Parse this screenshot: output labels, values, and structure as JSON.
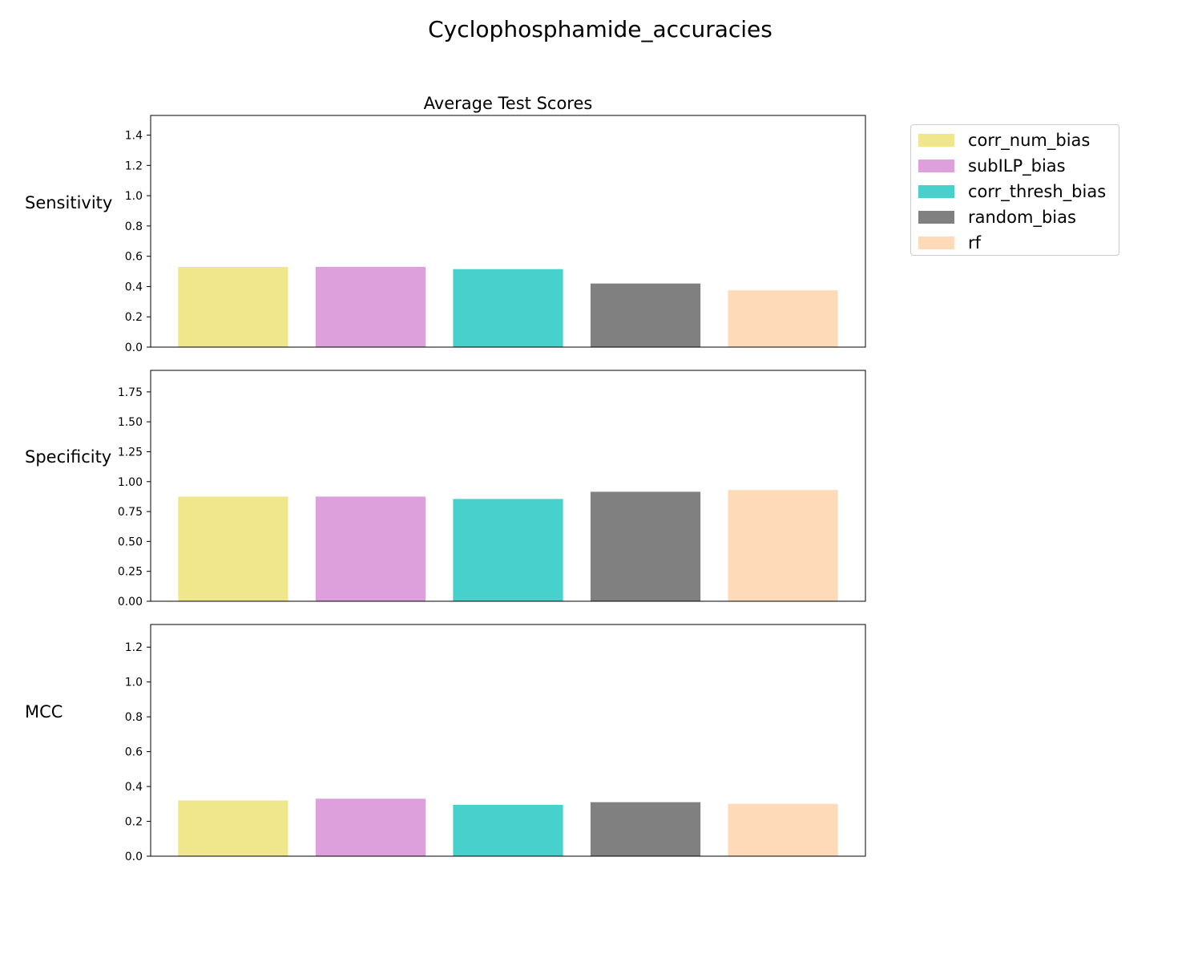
{
  "chart_data": {
    "type": "bar",
    "title": "Cyclophosphamide_accuracies",
    "subtitle": "Average Test Scores",
    "categories": [
      "corr_num_bias",
      "subILP_bias",
      "corr_thresh_bias",
      "random_bias",
      "rf"
    ],
    "colors": [
      "#f0e68c",
      "#dda0dd",
      "#48d1cc",
      "#808080",
      "#ffdab9"
    ],
    "legend": {
      "position": "right",
      "entries": [
        "corr_num_bias",
        "subILP_bias",
        "corr_thresh_bias",
        "random_bias",
        "rf"
      ]
    },
    "grid": false,
    "panels": [
      {
        "ylabel": "Sensitivity",
        "values": [
          0.53,
          0.53,
          0.515,
          0.42,
          0.375
        ],
        "ylim": [
          0,
          1.53
        ],
        "yticks": [
          0.0,
          0.2,
          0.4,
          0.6,
          0.8,
          1.0,
          1.2,
          1.4
        ],
        "ytick_labels": [
          "0.0",
          "0.2",
          "0.4",
          "0.6",
          "0.8",
          "1.0",
          "1.2",
          "1.4"
        ]
      },
      {
        "ylabel": "Specificity",
        "values": [
          0.875,
          0.875,
          0.855,
          0.915,
          0.93
        ],
        "ylim": [
          0,
          1.93
        ],
        "yticks": [
          0.0,
          0.25,
          0.5,
          0.75,
          1.0,
          1.25,
          1.5,
          1.75
        ],
        "ytick_labels": [
          "0.00",
          "0.25",
          "0.50",
          "0.75",
          "1.00",
          "1.25",
          "1.50",
          "1.75"
        ]
      },
      {
        "ylabel": "MCC",
        "values": [
          0.32,
          0.33,
          0.295,
          0.31,
          0.3
        ],
        "ylim": [
          0,
          1.33
        ],
        "yticks": [
          0.0,
          0.2,
          0.4,
          0.6,
          0.8,
          1.0,
          1.2
        ],
        "ytick_labels": [
          "0.0",
          "0.2",
          "0.4",
          "0.6",
          "0.8",
          "1.0",
          "1.2"
        ]
      }
    ]
  }
}
